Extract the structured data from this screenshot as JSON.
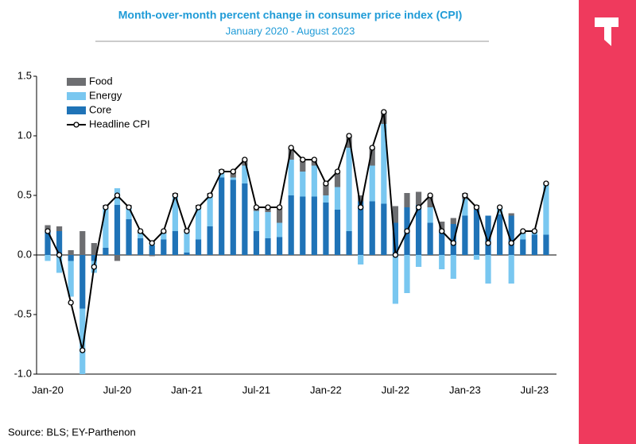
{
  "chart_data": {
    "type": "bar",
    "title": "Month-over-month percent change in consumer price index (CPI)",
    "subtitle": "January 2020 - August 2023",
    "source": "Source: BLS; EY-Parthenon",
    "categories": [
      "Jan-20",
      null,
      null,
      null,
      null,
      null,
      "Jul-20",
      null,
      null,
      null,
      null,
      null,
      "Jan-21",
      null,
      null,
      null,
      null,
      null,
      "Jul-21",
      null,
      null,
      null,
      null,
      null,
      "Jan-22",
      null,
      null,
      null,
      null,
      null,
      "Jul-22",
      null,
      null,
      null,
      null,
      null,
      "Jan-23",
      null,
      null,
      null,
      null,
      null,
      "Jul-23",
      null
    ],
    "ylim": [
      -1,
      1.5
    ],
    "yticks": [
      {
        "value": -1,
        "label": "-1.0"
      },
      -0.5,
      {
        "value": 0,
        "label": "0.0"
      },
      0.5,
      {
        "value": 1,
        "label": "1.0"
      },
      1.5
    ],
    "legend": "upper left",
    "series": [
      {
        "name": "Food",
        "type": "bar",
        "color": "#6d6e71",
        "values": [
          0.05,
          0.04,
          0.04,
          0.2,
          0.1,
          0.02,
          -0.05,
          0.02,
          0.02,
          -0.01,
          0.02,
          0.02,
          0.02,
          0.02,
          0.02,
          0.02,
          0.05,
          0.05,
          0.03,
          0.04,
          0.13,
          0.1,
          0.1,
          0.05,
          0.1,
          0.13,
          0.1,
          0.05,
          0.15,
          0.1,
          0.14,
          0.12,
          0.11,
          0.1,
          0.08,
          0.05,
          0.05,
          0.04,
          0.0,
          0.0,
          0.02,
          0.01,
          0.01,
          0.02
        ]
      },
      {
        "name": "Energy",
        "type": "bar",
        "color": "#79c7f0",
        "values": [
          -0.05,
          -0.15,
          -0.3,
          -0.55,
          -0.1,
          0.34,
          0.14,
          0.1,
          0.04,
          0.02,
          0.05,
          0.3,
          0.18,
          0.27,
          0.26,
          0.05,
          0.02,
          0.15,
          0.17,
          0.22,
          0.12,
          0.3,
          0.21,
          0.26,
          0.06,
          0.19,
          0.7,
          -0.08,
          0.3,
          0.67,
          -0.41,
          -0.32,
          -0.1,
          0.13,
          -0.12,
          -0.2,
          0.14,
          -0.04,
          -0.24,
          0.06,
          -0.24,
          0.05,
          0.03,
          0.42
        ]
      },
      {
        "name": "Core",
        "type": "bar",
        "color": "#1f73b7",
        "values": [
          0.2,
          0.2,
          -0.05,
          -0.45,
          -0.05,
          0.06,
          0.42,
          0.3,
          0.14,
          0.08,
          0.13,
          0.2,
          0.02,
          0.13,
          0.24,
          0.65,
          0.63,
          0.6,
          0.2,
          0.14,
          0.15,
          0.5,
          0.49,
          0.49,
          0.44,
          0.38,
          0.2,
          0.45,
          0.45,
          0.43,
          0.27,
          0.4,
          0.42,
          0.27,
          0.2,
          0.26,
          0.33,
          0.38,
          0.33,
          0.34,
          0.33,
          0.13,
          0.17,
          0.17
        ]
      },
      {
        "name": "Headline CPI",
        "type": "line",
        "color": "#000000",
        "values": [
          0.2,
          0.0,
          -0.4,
          -0.8,
          -0.1,
          0.4,
          0.5,
          0.4,
          0.2,
          0.1,
          0.2,
          0.5,
          0.2,
          0.4,
          0.5,
          0.7,
          0.7,
          0.8,
          0.4,
          0.4,
          0.4,
          0.9,
          0.8,
          0.8,
          0.6,
          0.7,
          1.0,
          0.4,
          0.9,
          1.2,
          0.0,
          0.2,
          0.4,
          0.5,
          0.2,
          0.1,
          0.5,
          0.4,
          0.1,
          0.4,
          0.1,
          0.2,
          0.2,
          0.6
        ]
      }
    ]
  }
}
